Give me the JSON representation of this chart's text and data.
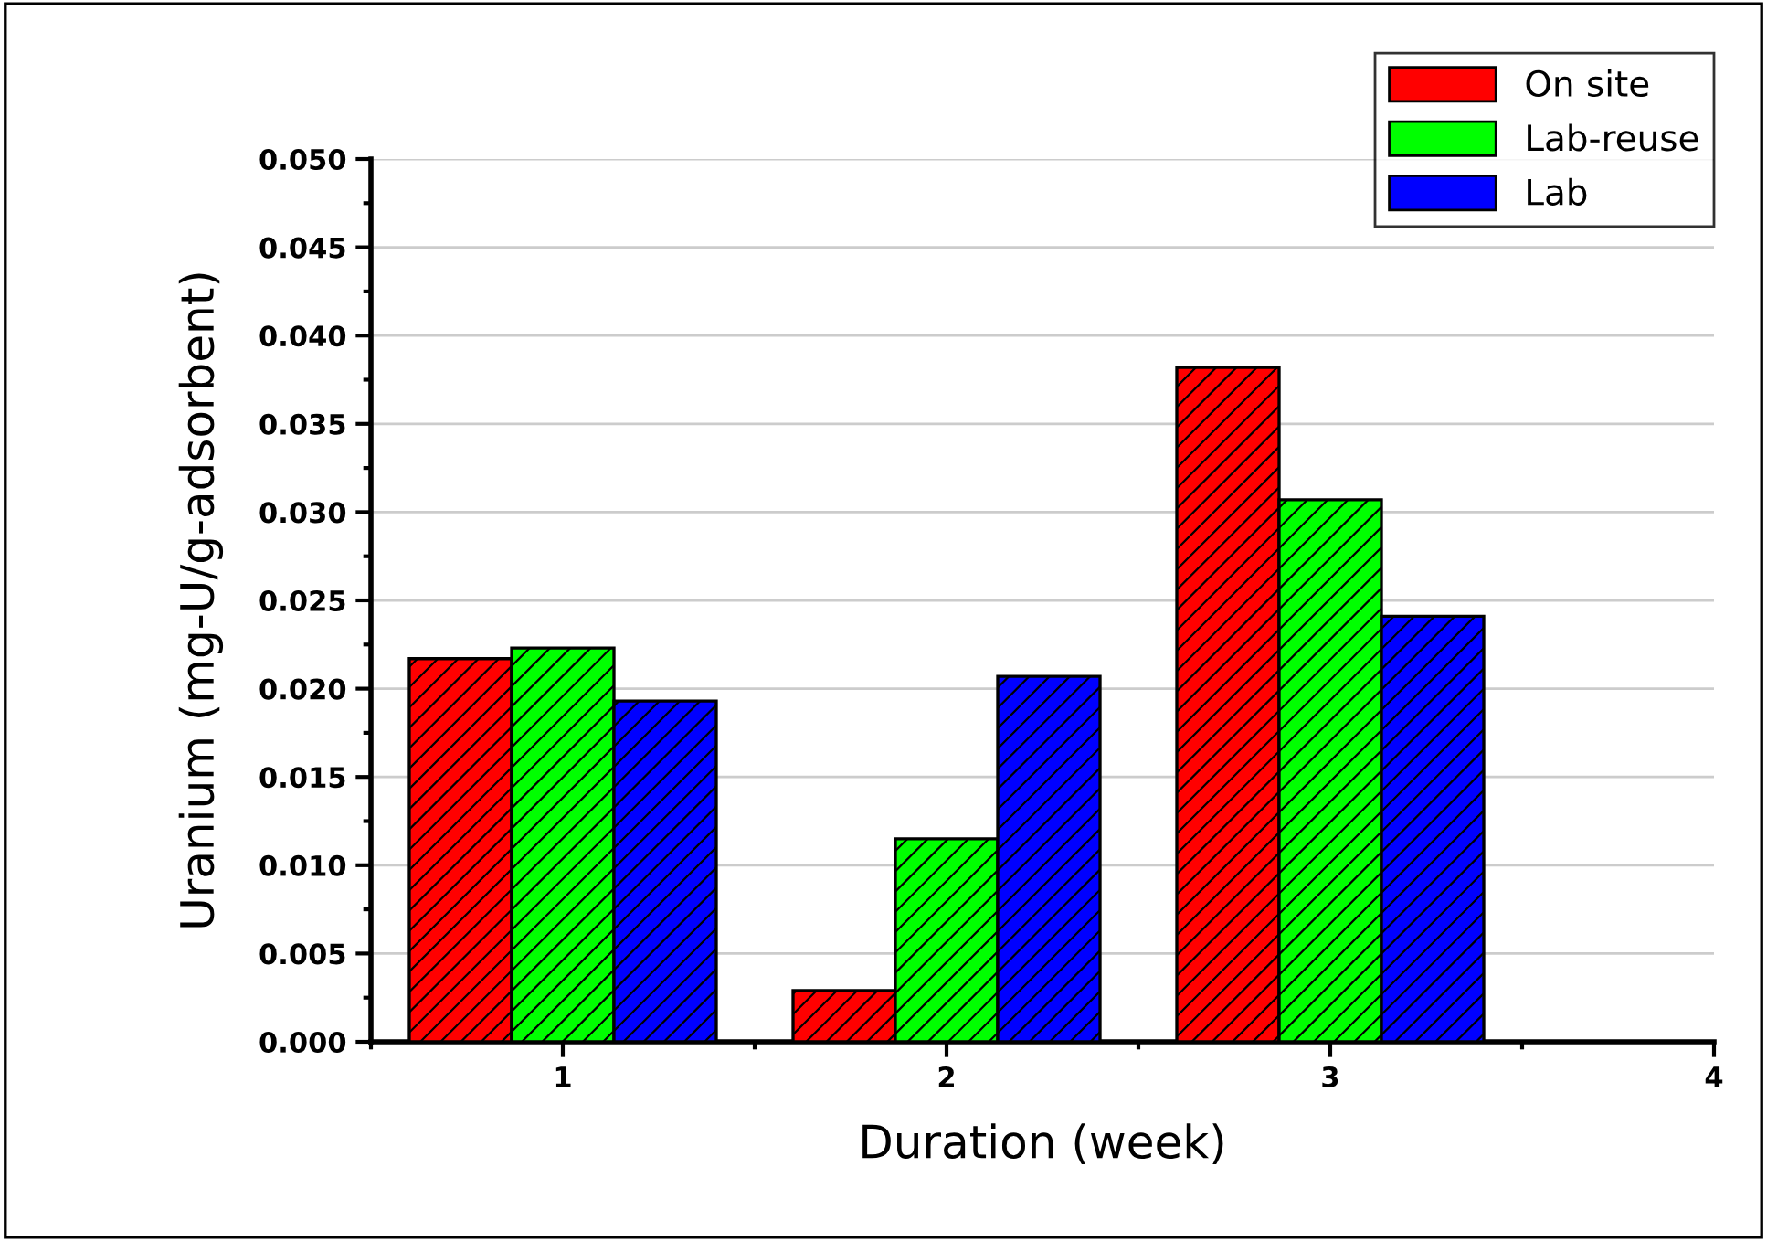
{
  "chart_data": {
    "type": "bar",
    "xlabel": "Duration (week)",
    "ylabel": "Uranium (mg-U/g-adsorbent)",
    "x": [
      1,
      2,
      3
    ],
    "series": [
      {
        "name": "On site",
        "color": "#ff0000",
        "values": [
          0.0217,
          0.0029,
          0.0382
        ]
      },
      {
        "name": "Lab-reuse",
        "color": "#00ff00",
        "values": [
          0.0223,
          0.0115,
          0.0307
        ]
      },
      {
        "name": "Lab",
        "color": "#0000ff",
        "values": [
          0.0193,
          0.0207,
          0.0241
        ]
      }
    ],
    "xlim": [
      0.5,
      4
    ],
    "xticks": [
      1,
      2,
      3,
      4
    ],
    "ylim": [
      0,
      0.05
    ],
    "yticks": [
      {
        "value": 0,
        "label": "0.000"
      },
      {
        "value": 0.005,
        "label": "0.005"
      },
      {
        "value": 0.01,
        "label": "0.010"
      },
      {
        "value": 0.015,
        "label": "0.015"
      },
      {
        "value": 0.02,
        "label": "0.020"
      },
      {
        "value": 0.025,
        "label": "0.025"
      },
      {
        "value": 0.03,
        "label": "0.030"
      },
      {
        "value": 0.035,
        "label": "0.035"
      },
      {
        "value": 0.04,
        "label": "0.040"
      },
      {
        "value": 0.045,
        "label": "0.045"
      },
      {
        "value": 0.05,
        "label": "0.050"
      }
    ],
    "grid": "y",
    "legend": "top right"
  }
}
